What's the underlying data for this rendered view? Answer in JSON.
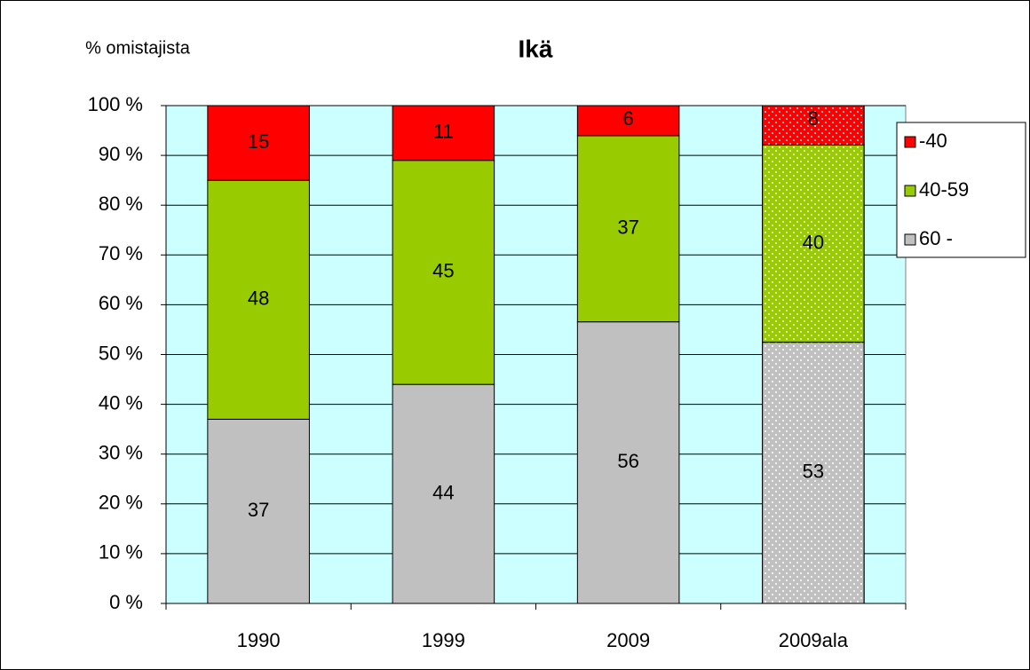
{
  "chart_data": {
    "type": "bar",
    "stack": "percent",
    "title": "Ikä",
    "y_label": "% omistajista",
    "categories": [
      "1990",
      "1999",
      "2009",
      "2009ala"
    ],
    "dotted": [
      false,
      false,
      false,
      true
    ],
    "series": [
      {
        "name": "60 -",
        "color": "#c0c0c0",
        "values": [
          37,
          44,
          56,
          53
        ]
      },
      {
        "name": "40-59",
        "color": "#99cc00",
        "values": [
          48,
          45,
          37,
          40
        ]
      },
      {
        "name": "-40",
        "color": "#ff0000",
        "values": [
          15,
          11,
          6,
          8
        ]
      }
    ],
    "ylim": [
      0,
      100
    ],
    "yticks": [
      {
        "value": 0,
        "label": "0 %"
      },
      {
        "value": 10,
        "label": "10 %"
      },
      {
        "value": 20,
        "label": "20 %"
      },
      {
        "value": 30,
        "label": "30 %"
      },
      {
        "value": 40,
        "label": "40 %"
      },
      {
        "value": 50,
        "label": "50 %"
      },
      {
        "value": 60,
        "label": "60 %"
      },
      {
        "value": 70,
        "label": "70 %"
      },
      {
        "value": 80,
        "label": "80 %"
      },
      {
        "value": 90,
        "label": "90 %"
      },
      {
        "value": 100,
        "label": "100 %"
      }
    ],
    "grid": true,
    "plot_background": "#ccffff",
    "legend": "right"
  }
}
